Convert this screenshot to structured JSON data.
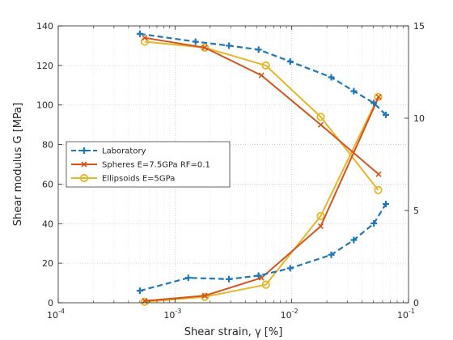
{
  "chart_data": {
    "type": "line",
    "xlabel": "Shear strain, γ [%]",
    "ylabel": "Shear modulus G [MPa]",
    "x_scale": "log",
    "xlim": [
      0.0001,
      0.1
    ],
    "ylim_left": [
      0,
      140
    ],
    "ylim_right": [
      0,
      15
    ],
    "x_ticks": [
      {
        "value": 0.0001,
        "base": "10",
        "exp": "-4"
      },
      {
        "value": 0.001,
        "base": "10",
        "exp": "-3"
      },
      {
        "value": 0.01,
        "base": "10",
        "exp": "-2"
      },
      {
        "value": 0.1,
        "base": "10",
        "exp": "-1"
      }
    ],
    "y_ticks_left": [
      "0",
      "20",
      "40",
      "60",
      "80",
      "100",
      "120",
      "140"
    ],
    "y_ticks_right": [
      "0",
      "5",
      "10",
      "15"
    ],
    "grid": "major and minor dotted",
    "legend_position": "left",
    "series": [
      {
        "name": "Laboratory",
        "color": "#1f77b4",
        "style": "dashed",
        "marker": "plus",
        "modulus": {
          "x": [
            0.0005,
            0.0015,
            0.0029,
            0.0052,
            0.0097,
            0.0218,
            0.034,
            0.0505,
            0.064
          ],
          "y": [
            136,
            132,
            130,
            128,
            122,
            114,
            107,
            101,
            95
          ]
        },
        "damping": {
          "x": [
            0.0005,
            0.0013,
            0.0029,
            0.0052,
            0.0097,
            0.0218,
            0.034,
            0.0505,
            0.064
          ],
          "y": [
            0.65,
            1.35,
            1.28,
            1.47,
            1.87,
            2.6,
            3.4,
            4.3,
            5.35
          ]
        }
      },
      {
        "name": "Spheres E=7.5GPa RF=0.1",
        "color": "#d4541c",
        "style": "solid",
        "marker": "x",
        "modulus": {
          "x": [
            0.00055,
            0.0018,
            0.0055,
            0.0177,
            0.0555
          ],
          "y": [
            134,
            129,
            115,
            90,
            65
          ]
        },
        "damping": {
          "x": [
            0.00055,
            0.0018,
            0.0055,
            0.0177,
            0.0555
          ],
          "y": [
            0.1,
            0.38,
            1.35,
            4.15,
            11.15
          ]
        }
      },
      {
        "name": "Ellipsoids E=5GPa",
        "color": "#e5b52a",
        "style": "solid",
        "marker": "circle",
        "modulus": {
          "x": [
            0.00055,
            0.0018,
            0.006,
            0.0177,
            0.055
          ],
          "y": [
            132,
            129,
            120,
            94,
            57
          ]
        },
        "damping": {
          "x": [
            0.00055,
            0.0018,
            0.006,
            0.0177,
            0.055
          ],
          "y": [
            0.05,
            0.32,
            0.98,
            4.7,
            11.15
          ]
        }
      }
    ]
  }
}
